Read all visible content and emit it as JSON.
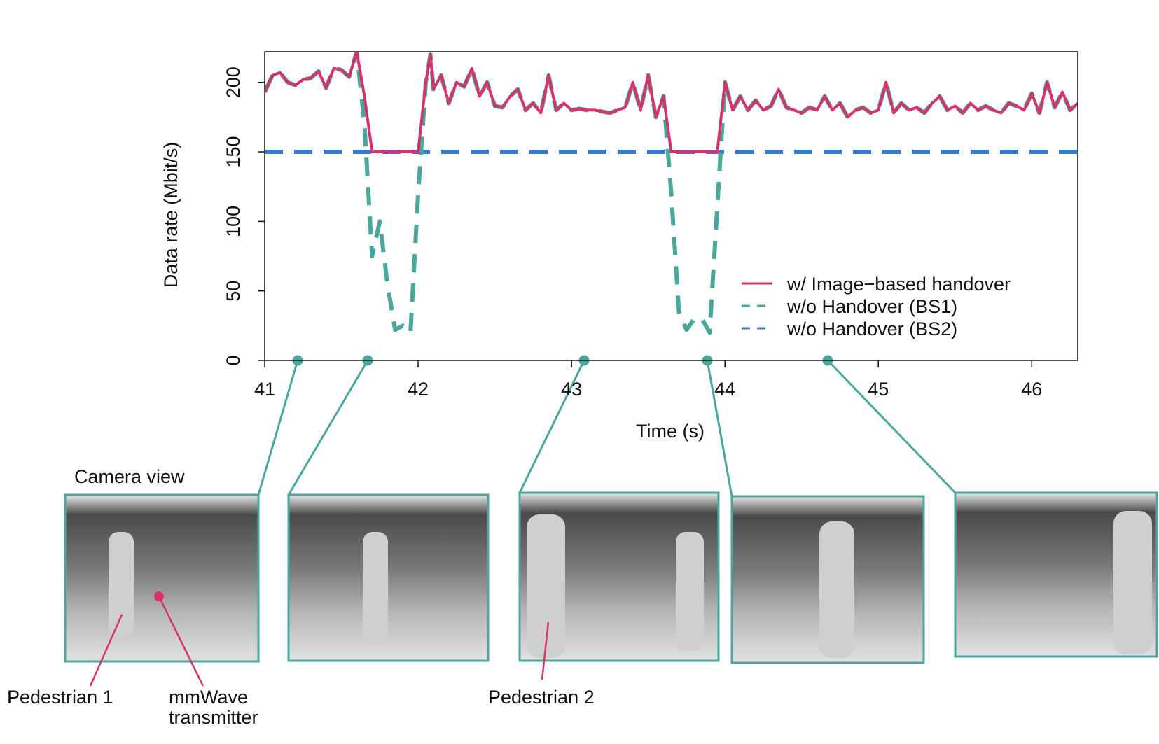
{
  "chart_data": {
    "type": "line",
    "xlabel": "Time (s)",
    "ylabel": "Data rate (Mbit/s)",
    "xlim": [
      41,
      46.3
    ],
    "ylim": [
      0,
      222
    ],
    "xticks": [
      41,
      42,
      43,
      44,
      45,
      46
    ],
    "yticks": [
      0,
      50,
      100,
      150,
      200
    ],
    "series": [
      {
        "name": "w/ Image−based handover",
        "color": "#d6336c",
        "dash": false,
        "x": [
          41.0,
          41.05,
          41.1,
          41.15,
          41.2,
          41.25,
          41.3,
          41.35,
          41.4,
          41.45,
          41.5,
          41.55,
          41.6,
          41.65,
          41.7,
          41.75,
          41.8,
          41.85,
          41.9,
          41.95,
          42.0,
          42.05,
          42.08,
          42.1,
          42.15,
          42.2,
          42.25,
          42.3,
          42.35,
          42.4,
          42.45,
          42.5,
          42.55,
          42.6,
          42.65,
          42.7,
          42.75,
          42.8,
          42.85,
          42.9,
          42.95,
          43.0,
          43.05,
          43.1,
          43.15,
          43.2,
          43.25,
          43.3,
          43.35,
          43.4,
          43.45,
          43.5,
          43.55,
          43.6,
          43.65,
          43.7,
          43.75,
          43.8,
          43.85,
          43.9,
          43.95,
          44.0,
          44.05,
          44.1,
          44.15,
          44.2,
          44.25,
          44.3,
          44.35,
          44.4,
          44.45,
          44.5,
          44.55,
          44.6,
          44.65,
          44.7,
          44.75,
          44.8,
          44.85,
          44.9,
          44.95,
          45.0,
          45.05,
          45.1,
          45.15,
          45.2,
          45.25,
          45.3,
          45.35,
          45.4,
          45.45,
          45.5,
          45.55,
          45.6,
          45.65,
          45.7,
          45.75,
          45.8,
          45.85,
          45.9,
          45.95,
          46.0,
          46.05,
          46.1,
          46.15,
          46.2,
          46.25,
          46.3
        ],
        "values": [
          193,
          205,
          207,
          200,
          198,
          202,
          203,
          208,
          196,
          210,
          209,
          204,
          222,
          190,
          150,
          150,
          150,
          150,
          150,
          150,
          150,
          200,
          220,
          195,
          205,
          185,
          200,
          197,
          210,
          190,
          200,
          183,
          182,
          190,
          195,
          180,
          185,
          178,
          205,
          180,
          185,
          180,
          181,
          180,
          180,
          179,
          178,
          180,
          182,
          200,
          180,
          205,
          175,
          190,
          150,
          150,
          150,
          150,
          150,
          150,
          150,
          200,
          180,
          190,
          180,
          187,
          180,
          183,
          195,
          182,
          180,
          178,
          182,
          180,
          190,
          180,
          185,
          175,
          180,
          182,
          178,
          180,
          200,
          178,
          185,
          180,
          182,
          178,
          185,
          190,
          180,
          183,
          178,
          185,
          180,
          183,
          180,
          178,
          185,
          183,
          180,
          192,
          178,
          200,
          182,
          193,
          180,
          185
        ]
      },
      {
        "name": "w/o Handover (BS1)",
        "color": "#4aa79e",
        "dash": true,
        "x": [
          41.0,
          41.05,
          41.1,
          41.15,
          41.2,
          41.25,
          41.3,
          41.35,
          41.4,
          41.45,
          41.5,
          41.55,
          41.6,
          41.65,
          41.7,
          41.75,
          41.8,
          41.85,
          41.9,
          41.95,
          42.0,
          42.05,
          42.08,
          42.1,
          42.15,
          42.2,
          42.25,
          42.3,
          42.35,
          42.4,
          42.45,
          42.5,
          42.55,
          42.6,
          42.65,
          42.7,
          42.75,
          42.8,
          42.85,
          42.9,
          42.95,
          43.0,
          43.05,
          43.1,
          43.15,
          43.2,
          43.25,
          43.3,
          43.35,
          43.4,
          43.45,
          43.5,
          43.55,
          43.6,
          43.65,
          43.7,
          43.75,
          43.8,
          43.85,
          43.9,
          43.95,
          44.0,
          44.05,
          44.1,
          44.15,
          44.2,
          44.25,
          44.3,
          44.35,
          44.4,
          44.45,
          44.5,
          44.55,
          44.6,
          44.65,
          44.7,
          44.75,
          44.8,
          44.85,
          44.9,
          44.95,
          45.0,
          45.05,
          45.1,
          45.15,
          45.2,
          45.25,
          45.3,
          45.35,
          45.4,
          45.45,
          45.5,
          45.55,
          45.6,
          45.65,
          45.7,
          45.75,
          45.8,
          45.85,
          45.9,
          45.95,
          46.0,
          46.05,
          46.1,
          46.15,
          46.2,
          46.25,
          46.3
        ],
        "values": [
          193,
          205,
          207,
          200,
          198,
          202,
          203,
          208,
          196,
          210,
          209,
          204,
          222,
          170,
          75,
          100,
          55,
          22,
          25,
          20,
          120,
          200,
          220,
          195,
          205,
          185,
          200,
          197,
          210,
          190,
          200,
          183,
          182,
          190,
          195,
          180,
          185,
          178,
          205,
          180,
          185,
          180,
          181,
          180,
          180,
          179,
          178,
          180,
          182,
          200,
          180,
          205,
          175,
          190,
          120,
          35,
          22,
          30,
          30,
          20,
          110,
          200,
          180,
          190,
          180,
          187,
          180,
          183,
          195,
          182,
          180,
          178,
          182,
          180,
          190,
          180,
          185,
          175,
          180,
          182,
          178,
          180,
          200,
          178,
          185,
          180,
          182,
          178,
          185,
          190,
          180,
          183,
          178,
          185,
          180,
          183,
          180,
          178,
          185,
          183,
          180,
          192,
          178,
          200,
          182,
          193,
          180,
          185
        ]
      },
      {
        "name": "w/o Handover (BS2)",
        "color": "#3a78cc",
        "dash": true,
        "x": [
          41.0,
          46.3
        ],
        "values": [
          150,
          150
        ]
      }
    ]
  },
  "annotations": {
    "camera_view": "Camera view",
    "pedestrian_1": "Pedestrian 1",
    "transmitter": [
      "mmWave",
      "transmitter"
    ],
    "pedestrian_2": "Pedestrian 2"
  }
}
